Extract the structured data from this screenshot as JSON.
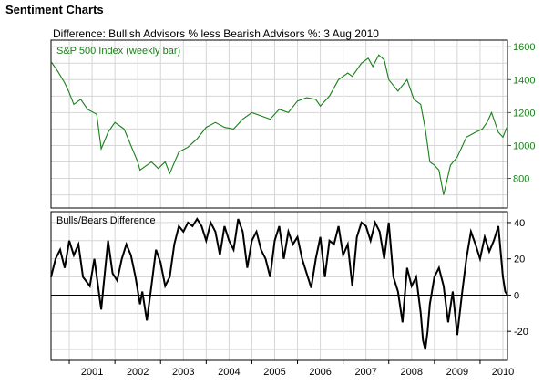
{
  "header": {
    "title": "Sentiment Charts",
    "subtitle": "Difference: Bullish Advisors % less Bearish Advisors %: 3 Aug 2010"
  },
  "colors": {
    "sp500": "#1a7f1a",
    "diff": "#000000",
    "grid": "#d6d6d6",
    "frame": "#000000"
  },
  "chart_data": [
    {
      "type": "line",
      "title": "S&P 500 Index (weekly bar)",
      "xlabel": "",
      "ylabel": "",
      "xlim": [
        2000.6,
        2010.6
      ],
      "ylim": [
        620,
        1640
      ],
      "x_ticks": [
        "2001",
        "2002",
        "2003",
        "2004",
        "2005",
        "2006",
        "2007",
        "2008",
        "2009",
        "2010"
      ],
      "y_ticks": [
        800,
        1000,
        1200,
        1400,
        1600
      ],
      "grid": true,
      "series": [
        {
          "name": "S&P 500 Index (weekly bar)",
          "x": [
            2000.6,
            2000.75,
            2000.9,
            2001.0,
            2001.1,
            2001.25,
            2001.4,
            2001.6,
            2001.7,
            2001.85,
            2002.0,
            2002.2,
            2002.35,
            2002.5,
            2002.55,
            2002.7,
            2002.8,
            2002.95,
            2003.1,
            2003.2,
            2003.4,
            2003.6,
            2003.8,
            2004.0,
            2004.2,
            2004.4,
            2004.6,
            2004.8,
            2005.0,
            2005.2,
            2005.4,
            2005.6,
            2005.8,
            2006.0,
            2006.2,
            2006.4,
            2006.5,
            2006.7,
            2006.9,
            2007.1,
            2007.2,
            2007.4,
            2007.55,
            2007.65,
            2007.78,
            2007.9,
            2008.0,
            2008.2,
            2008.4,
            2008.55,
            2008.7,
            2008.8,
            2008.9,
            2009.0,
            2009.1,
            2009.2,
            2009.35,
            2009.5,
            2009.7,
            2009.9,
            2010.05,
            2010.15,
            2010.25,
            2010.4,
            2010.5,
            2010.6
          ],
          "values": [
            1510,
            1450,
            1380,
            1320,
            1250,
            1280,
            1220,
            1190,
            980,
            1080,
            1140,
            1100,
            1000,
            900,
            850,
            880,
            900,
            860,
            900,
            830,
            960,
            990,
            1040,
            1110,
            1140,
            1110,
            1100,
            1160,
            1200,
            1180,
            1160,
            1220,
            1200,
            1270,
            1290,
            1280,
            1240,
            1300,
            1400,
            1440,
            1420,
            1500,
            1530,
            1480,
            1550,
            1520,
            1400,
            1330,
            1400,
            1280,
            1250,
            1100,
            900,
            880,
            850,
            700,
            880,
            930,
            1050,
            1080,
            1100,
            1140,
            1200,
            1080,
            1050,
            1120
          ]
        }
      ]
    },
    {
      "type": "line",
      "title": "Bulls/Bears Difference",
      "xlabel": "",
      "ylabel": "",
      "xlim": [
        2000.6,
        2010.6
      ],
      "ylim": [
        -36,
        46
      ],
      "x_ticks": [
        "2001",
        "2002",
        "2003",
        "2004",
        "2005",
        "2006",
        "2007",
        "2008",
        "2009",
        "2010"
      ],
      "y_ticks": [
        -20,
        0,
        20,
        40
      ],
      "grid": true,
      "reference_line": 0,
      "series": [
        {
          "name": "Bulls/Bears Difference",
          "x": [
            2000.6,
            2000.7,
            2000.8,
            2000.9,
            2001.0,
            2001.1,
            2001.2,
            2001.3,
            2001.45,
            2001.55,
            2001.7,
            2001.75,
            2001.85,
            2001.95,
            2002.05,
            2002.15,
            2002.25,
            2002.35,
            2002.45,
            2002.55,
            2002.6,
            2002.7,
            2002.8,
            2002.9,
            2003.0,
            2003.1,
            2003.2,
            2003.3,
            2003.4,
            2003.5,
            2003.6,
            2003.7,
            2003.8,
            2003.9,
            2004.0,
            2004.1,
            2004.2,
            2004.3,
            2004.4,
            2004.5,
            2004.6,
            2004.7,
            2004.8,
            2004.9,
            2005.0,
            2005.1,
            2005.2,
            2005.3,
            2005.4,
            2005.5,
            2005.6,
            2005.7,
            2005.8,
            2005.9,
            2006.0,
            2006.1,
            2006.2,
            2006.3,
            2006.4,
            2006.5,
            2006.6,
            2006.7,
            2006.8,
            2006.9,
            2007.0,
            2007.1,
            2007.2,
            2007.3,
            2007.4,
            2007.5,
            2007.6,
            2007.7,
            2007.8,
            2007.9,
            2008.0,
            2008.1,
            2008.2,
            2008.3,
            2008.4,
            2008.5,
            2008.6,
            2008.7,
            2008.75,
            2008.8,
            2008.85,
            2008.9,
            2009.0,
            2009.1,
            2009.2,
            2009.3,
            2009.4,
            2009.5,
            2009.6,
            2009.7,
            2009.8,
            2009.9,
            2010.0,
            2010.1,
            2010.2,
            2010.3,
            2010.4,
            2010.5,
            2010.55,
            2010.6
          ],
          "values": [
            10,
            20,
            25,
            15,
            30,
            22,
            28,
            10,
            5,
            20,
            -8,
            5,
            30,
            12,
            8,
            20,
            28,
            22,
            10,
            -5,
            2,
            -14,
            5,
            25,
            18,
            5,
            10,
            28,
            38,
            35,
            40,
            38,
            42,
            38,
            30,
            40,
            35,
            22,
            38,
            30,
            25,
            42,
            35,
            15,
            30,
            35,
            25,
            20,
            10,
            30,
            38,
            20,
            35,
            28,
            32,
            20,
            12,
            4,
            20,
            32,
            10,
            30,
            28,
            38,
            22,
            28,
            5,
            32,
            40,
            38,
            30,
            40,
            35,
            20,
            40,
            10,
            2,
            -15,
            15,
            5,
            10,
            -10,
            -25,
            -30,
            -20,
            -5,
            10,
            15,
            5,
            -15,
            2,
            -22,
            0,
            20,
            35,
            28,
            20,
            32,
            24,
            30,
            38,
            10,
            2,
            0
          ]
        }
      ]
    }
  ]
}
